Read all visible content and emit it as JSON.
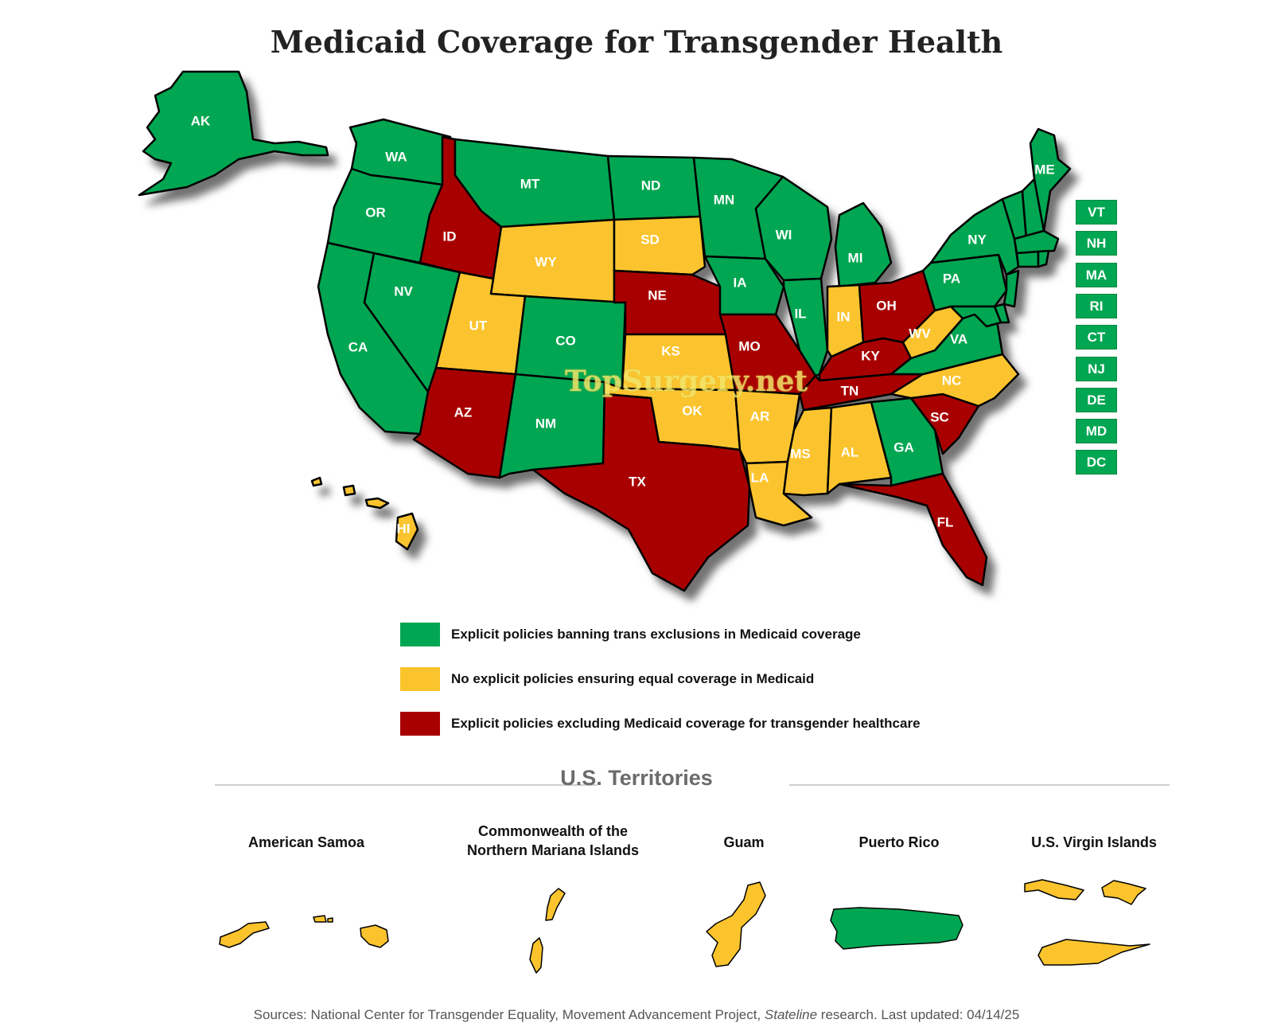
{
  "title": "Medicaid Coverage for Transgender Health",
  "watermark": "TopSurgery.net",
  "colors": {
    "green": "#00a651",
    "yellow": "#fbc42d",
    "red": "#a80000"
  },
  "states": {
    "AK": "green",
    "WA": "green",
    "OR": "green",
    "CA": "green",
    "NV": "green",
    "ID": "red",
    "MT": "green",
    "WY": "yellow",
    "UT": "yellow",
    "AZ": "red",
    "CO": "green",
    "NM": "green",
    "ND": "green",
    "SD": "yellow",
    "NE": "red",
    "KS": "yellow",
    "OK": "yellow",
    "TX": "red",
    "MN": "green",
    "IA": "green",
    "MO": "red",
    "AR": "yellow",
    "LA": "yellow",
    "WI": "green",
    "IL": "green",
    "MI": "green",
    "IN": "yellow",
    "OH": "red",
    "KY": "red",
    "TN": "red",
    "MS": "yellow",
    "AL": "yellow",
    "GA": "green",
    "FL": "red",
    "SC": "red",
    "NC": "yellow",
    "VA": "green",
    "WV": "yellow",
    "PA": "green",
    "NY": "green",
    "ME": "green",
    "HI": "yellow"
  },
  "small_states": [
    "VT",
    "NH",
    "MA",
    "RI",
    "CT",
    "NJ",
    "DE",
    "MD",
    "DC"
  ],
  "legend": [
    {
      "color": "green",
      "label": "Explicit policies banning trans exclusions in Medicaid coverage"
    },
    {
      "color": "yellow",
      "label": "No explicit policies ensuring equal coverage in Medicaid"
    },
    {
      "color": "red",
      "label": "Explicit policies excluding Medicaid coverage for transgender healthcare"
    }
  ],
  "territories_heading": "U.S. Territories",
  "territories": [
    {
      "name": "American Samoa",
      "color": "yellow"
    },
    {
      "name": "Commonwealth of the Northern Mariana Islands",
      "name_line1": "Commonwealth of the",
      "name_line2": "Northern Mariana Islands",
      "color": "yellow"
    },
    {
      "name": "Guam",
      "color": "yellow"
    },
    {
      "name": "Puerto Rico",
      "color": "green"
    },
    {
      "name": "U.S. Virgin Islands",
      "color": "yellow"
    }
  ],
  "sources": {
    "prefix": "Sources: National Center for Transgender Equality, Movement Advancement Project, ",
    "italic": "Stateline",
    "suffix": " research. Last updated: ",
    "date": "04/14/25"
  }
}
